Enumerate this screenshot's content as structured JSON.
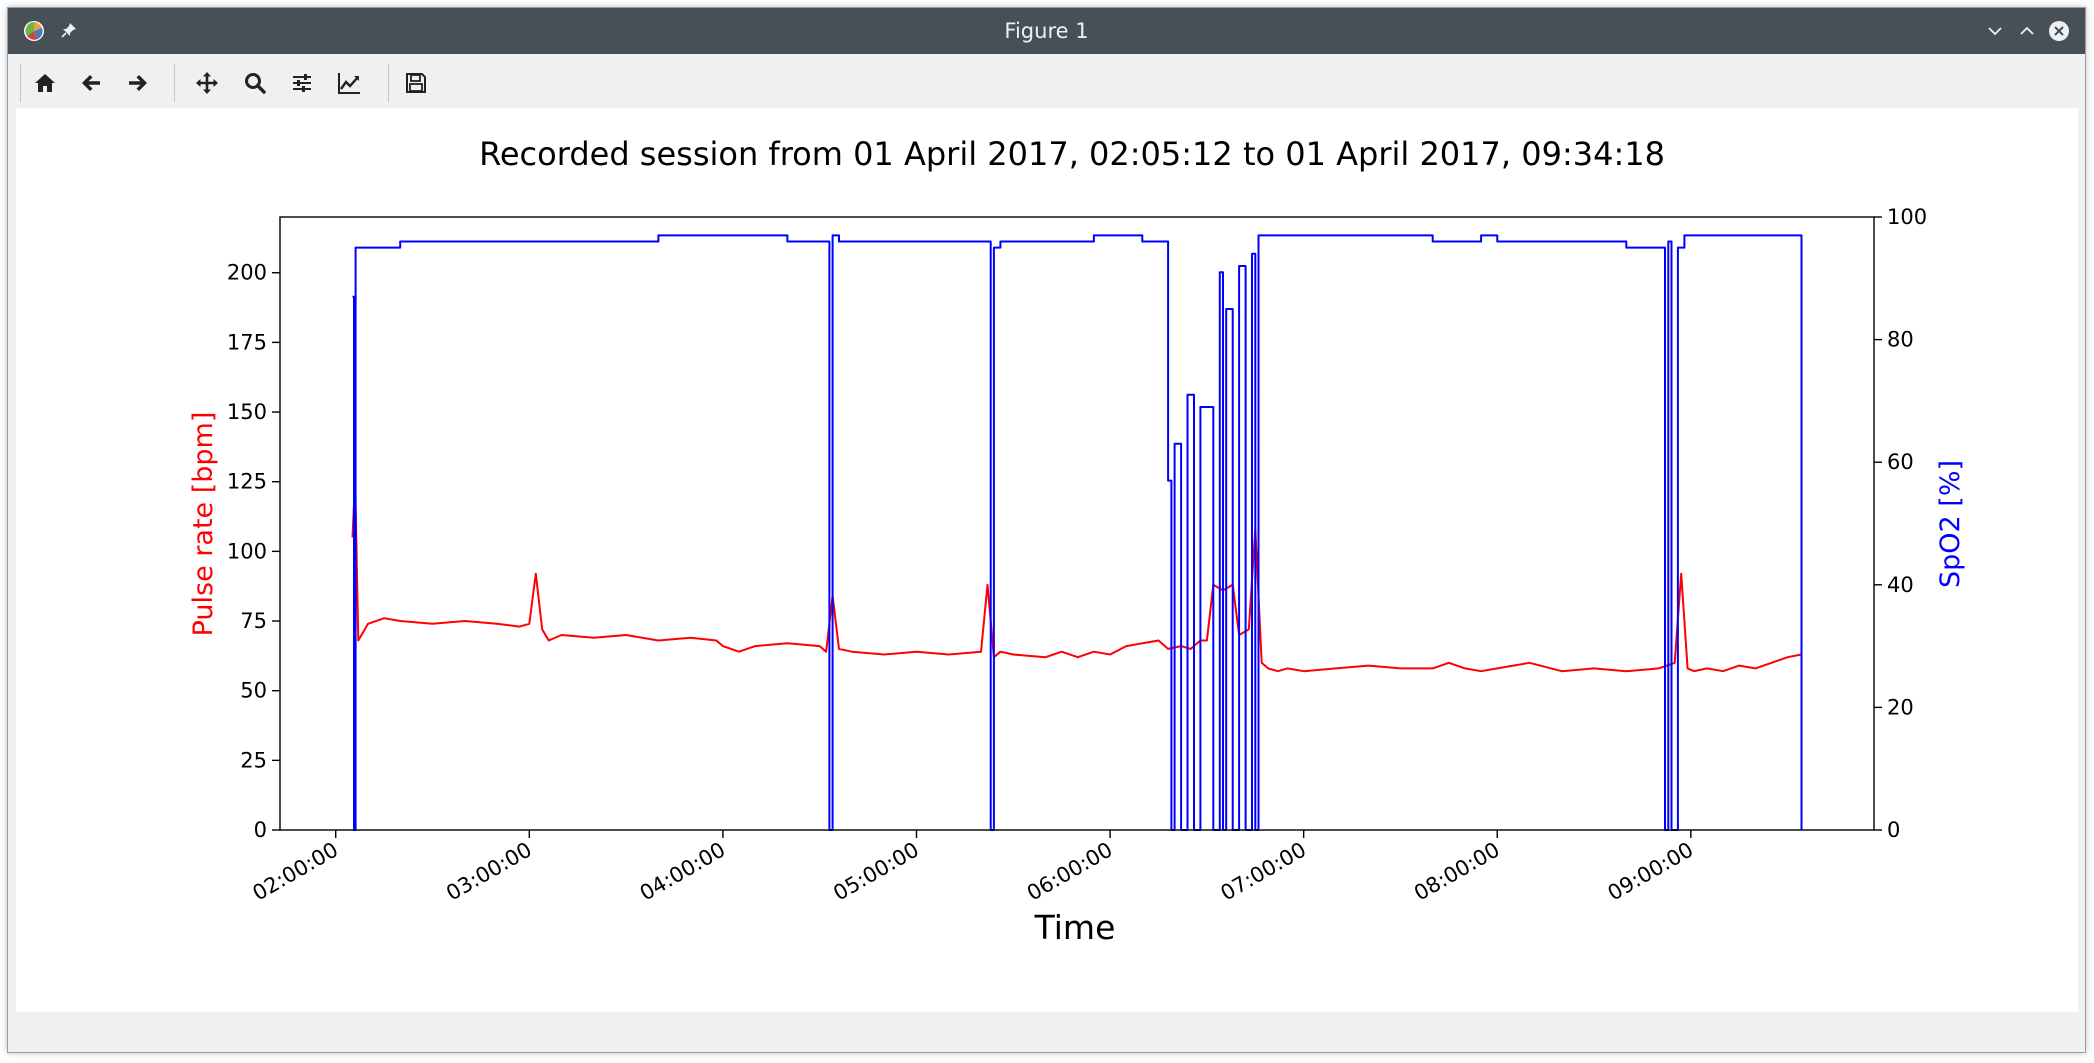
{
  "window": {
    "title": "Figure 1",
    "icons": [
      "app-icon",
      "pin-icon",
      "minimize-icon",
      "maximize-icon",
      "close-icon"
    ]
  },
  "toolbar": {
    "buttons": [
      {
        "name": "home-button",
        "icon": "home-icon"
      },
      {
        "name": "back-button",
        "icon": "arrow-left-icon"
      },
      {
        "name": "forward-button",
        "icon": "arrow-right-icon"
      },
      {
        "name": "pan-button",
        "icon": "move-icon"
      },
      {
        "name": "zoom-button",
        "icon": "search-icon"
      },
      {
        "name": "configure-subplots-button",
        "icon": "sliders-icon"
      },
      {
        "name": "edit-axes-button",
        "icon": "line-chart-icon"
      },
      {
        "name": "save-button",
        "icon": "save-icon"
      }
    ]
  },
  "chart_data": {
    "type": "line",
    "title": "Recorded session from 01 April 2017, 02:05:12 to 01 April 2017, 09:34:18",
    "xlabel": "Time",
    "ylabel": "Pulse rate [bpm]",
    "ylabel_right": "SpO2 [%]",
    "xlim": [
      "01:42:44",
      "09:56:46"
    ],
    "ylim": [
      0,
      220
    ],
    "ylim_right": [
      0,
      100
    ],
    "xticks": [
      "02:00:00",
      "03:00:00",
      "04:00:00",
      "05:00:00",
      "06:00:00",
      "07:00:00",
      "08:00:00",
      "09:00:00"
    ],
    "yticks": [
      0,
      25,
      50,
      75,
      100,
      125,
      150,
      175,
      200
    ],
    "yticks_right": [
      0,
      20,
      40,
      60,
      80,
      100
    ],
    "grid": false,
    "colors": {
      "pulse": "#ff0000",
      "spo2": "#0000ff"
    },
    "series": [
      {
        "name": "Pulse rate",
        "axis": "left",
        "x": [
          "02:05:12",
          "02:06:00",
          "02:07:00",
          "02:08:00",
          "02:10:00",
          "02:15:00",
          "02:20:00",
          "02:30:00",
          "02:40:00",
          "02:50:00",
          "02:57:00",
          "03:00:00",
          "03:02:00",
          "03:04:00",
          "03:06:00",
          "03:10:00",
          "03:20:00",
          "03:30:00",
          "03:40:00",
          "03:50:00",
          "03:58:00",
          "04:00:00",
          "04:05:00",
          "04:10:00",
          "04:20:00",
          "04:30:00",
          "04:32:00",
          "04:34:00",
          "04:36:00",
          "04:40:00",
          "04:50:00",
          "05:00:00",
          "05:10:00",
          "05:20:00",
          "05:22:00",
          "05:24:00",
          "05:26:00",
          "05:30:00",
          "05:40:00",
          "05:45:00",
          "05:50:00",
          "05:55:00",
          "06:00:00",
          "06:05:00",
          "06:10:00",
          "06:15:00",
          "06:18:00",
          "06:22:00",
          "06:25:00",
          "06:28:00",
          "06:30:00",
          "06:32:00",
          "06:35:00",
          "06:38:00",
          "06:40:00",
          "06:43:00",
          "06:45:00",
          "06:47:00",
          "06:49:00",
          "06:52:00",
          "06:55:00",
          "07:00:00",
          "07:10:00",
          "07:20:00",
          "07:30:00",
          "07:40:00",
          "07:45:00",
          "07:50:00",
          "07:55:00",
          "08:00:00",
          "08:10:00",
          "08:20:00",
          "08:30:00",
          "08:40:00",
          "08:50:00",
          "08:55:00",
          "08:57:00",
          "08:59:00",
          "09:01:00",
          "09:05:00",
          "09:10:00",
          "09:15:00",
          "09:20:00",
          "09:25:00",
          "09:30:00",
          "09:34:18"
        ],
        "values": [
          105,
          126,
          68,
          70,
          74,
          76,
          75,
          74,
          75,
          74,
          73,
          74,
          92,
          72,
          68,
          70,
          69,
          70,
          68,
          69,
          68,
          66,
          64,
          66,
          67,
          66,
          64,
          84,
          65,
          64,
          63,
          64,
          63,
          64,
          88,
          62,
          64,
          63,
          62,
          64,
          62,
          64,
          63,
          66,
          67,
          68,
          65,
          66,
          65,
          68,
          68,
          88,
          86,
          88,
          70,
          72,
          108,
          60,
          58,
          57,
          58,
          57,
          58,
          59,
          58,
          58,
          60,
          58,
          57,
          58,
          60,
          57,
          58,
          57,
          58,
          60,
          92,
          58,
          57,
          58,
          57,
          59,
          58,
          60,
          62,
          63
        ]
      },
      {
        "name": "SpO2",
        "axis": "right",
        "x": [
          "02:05:12",
          "02:05:40",
          "02:06:10",
          "02:07:00",
          "02:20:00",
          "02:40:00",
          "03:00:00",
          "03:20:00",
          "03:40:00",
          "04:00:00",
          "04:20:00",
          "04:32:00",
          "04:33:00",
          "04:34:00",
          "04:36:00",
          "04:50:00",
          "05:10:00",
          "05:22:00",
          "05:23:00",
          "05:24:00",
          "05:26:00",
          "05:40:00",
          "05:55:00",
          "06:10:00",
          "06:17:00",
          "06:18:00",
          "06:19:00",
          "06:20:00",
          "06:22:00",
          "06:24:00",
          "06:26:00",
          "06:28:00",
          "06:30:00",
          "06:32:00",
          "06:34:00",
          "06:35:00",
          "06:36:00",
          "06:38:00",
          "06:40:00",
          "06:42:00",
          "06:44:00",
          "06:45:00",
          "06:46:00",
          "06:48:00",
          "06:50:00",
          "07:00:00",
          "07:20:00",
          "07:40:00",
          "07:55:00",
          "08:00:00",
          "08:20:00",
          "08:40:00",
          "08:50:00",
          "08:52:00",
          "08:53:00",
          "08:54:00",
          "08:56:00",
          "08:58:00",
          "09:00:00",
          "09:20:00",
          "09:30:00",
          "09:33:00",
          "09:34:18"
        ],
        "values": [
          87,
          0,
          95,
          95,
          96,
          96,
          96,
          96,
          97,
          97,
          96,
          96,
          0,
          97,
          96,
          96,
          96,
          96,
          0,
          95,
          96,
          96,
          97,
          96,
          96,
          57,
          0,
          63,
          0,
          71,
          0,
          69,
          69,
          0,
          91,
          0,
          85,
          0,
          92,
          0,
          94,
          0,
          97,
          97,
          97,
          97,
          97,
          96,
          97,
          96,
          96,
          95,
          95,
          0,
          96,
          0,
          95,
          97,
          97,
          97,
          97,
          97,
          0
        ]
      }
    ]
  }
}
